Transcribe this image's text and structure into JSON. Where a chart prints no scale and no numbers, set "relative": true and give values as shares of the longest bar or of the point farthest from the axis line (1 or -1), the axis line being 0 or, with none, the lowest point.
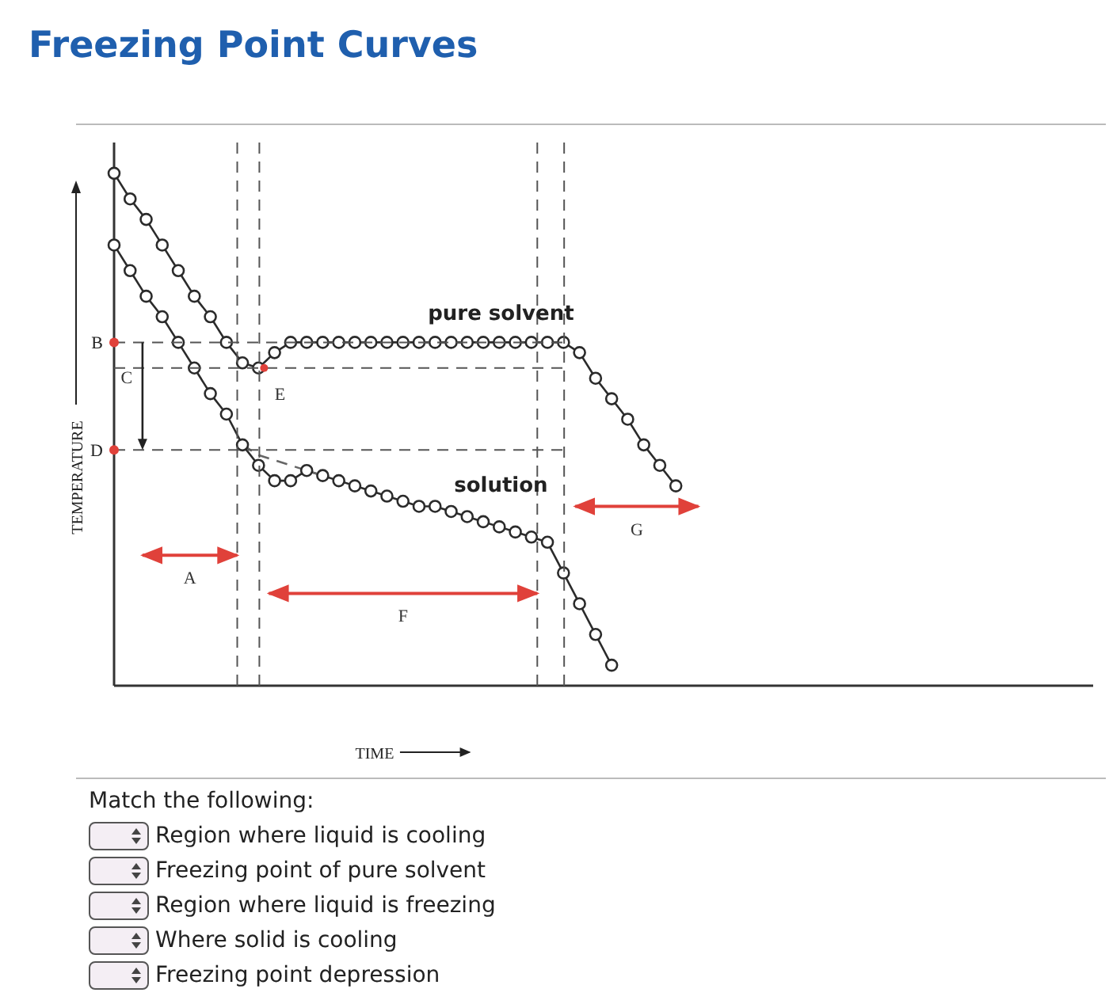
{
  "chart_data": {
    "type": "line",
    "title": "Freezing Point Curves",
    "xlabel": "TIME",
    "ylabel": "TEMPERATURE",
    "relative": true,
    "marker": "circle",
    "line_style": "solid",
    "categories": [
      null,
      null,
      null,
      null,
      null,
      null,
      null,
      null,
      null,
      null,
      null,
      null,
      null,
      null,
      null,
      null,
      null,
      null,
      null,
      null,
      null,
      null,
      null,
      null,
      null,
      null,
      null,
      null,
      null,
      null,
      null,
      null,
      null,
      null,
      null,
      null,
      null,
      null,
      null,
      null,
      null,
      null,
      null,
      null,
      null,
      null,
      null,
      null,
      null,
      null,
      null,
      null,
      null,
      null,
      null,
      null,
      null,
      null,
      null,
      null,
      null,
      null
    ],
    "series": [
      {
        "name": "pure solvent",
        "color": "#2b2b2b",
        "values": [
          1.0,
          0.95,
          0.91,
          0.86,
          0.81,
          0.76,
          0.72,
          0.67,
          0.63,
          0.62,
          0.65,
          0.67,
          0.67,
          0.67,
          0.67,
          0.67,
          0.67,
          0.67,
          0.67,
          0.67,
          0.67,
          0.67,
          0.67,
          0.67,
          0.67,
          0.67,
          0.67,
          0.67,
          0.67,
          0.65,
          0.6,
          0.56,
          0.52,
          0.47,
          0.43,
          0.39,
          null,
          null,
          null,
          null,
          null,
          null,
          null,
          null,
          null,
          null,
          null,
          null,
          null,
          null,
          null,
          null,
          null,
          null,
          null,
          null,
          null,
          null,
          null,
          null,
          null,
          null
        ]
      },
      {
        "name": "solution",
        "color": "#2b2b2b",
        "values": [
          0.86,
          0.81,
          0.76,
          0.72,
          0.67,
          0.62,
          0.57,
          0.53,
          0.47,
          0.43,
          0.4,
          0.4,
          0.42,
          0.41,
          0.4,
          0.39,
          0.38,
          0.37,
          0.36,
          0.35,
          0.35,
          0.34,
          0.33,
          0.32,
          0.31,
          0.3,
          0.29,
          0.28,
          0.22,
          0.16,
          0.1,
          0.04,
          null,
          null,
          null,
          null,
          null,
          null,
          null,
          null,
          null,
          null,
          null,
          null,
          null,
          null,
          null,
          null,
          null,
          null,
          null,
          null,
          null,
          null,
          null,
          null,
          null,
          null,
          null,
          null,
          null,
          null
        ]
      },
      {
        "type": "line",
        "color": "#666666",
        "line_style": "dashed",
        "marker": "none",
        "values": [
          null,
          null,
          null,
          null,
          null,
          null,
          null,
          null,
          0.47,
          0.45,
          0.44,
          0.43,
          0.42,
          0.41,
          null,
          null,
          null,
          null,
          null,
          null,
          null,
          null,
          null,
          null,
          null,
          null,
          null,
          null,
          null,
          null,
          null,
          null,
          null,
          null,
          null,
          null,
          null,
          null,
          null,
          null,
          null,
          null,
          null,
          null,
          null,
          null,
          null,
          null,
          null,
          null,
          null,
          null,
          null,
          null,
          null,
          null,
          null,
          null,
          null,
          null,
          null,
          null
        ]
      }
    ],
    "ref_lines": [
      {
        "axis": "y",
        "value": 0.67,
        "label": "B",
        "color": "#555555",
        "line_style": "dashed"
      },
      {
        "axis": "y",
        "value": 0.46,
        "label": "D",
        "color": "#555555",
        "line_style": "dashed"
      },
      {
        "axis": "y",
        "value": 0.62,
        "color": "#555555",
        "line_style": "dashed"
      }
    ],
    "annotations": [
      {
        "text": "E",
        "y": 0.62
      },
      "A",
      "F",
      "G",
      "C",
      "Match the following:",
      "Region where liquid is cooling",
      "Freezing point of pure solvent",
      "Region where liquid is freezing",
      "Where solid is cooling",
      "Freezing point depression"
    ]
  }
}
